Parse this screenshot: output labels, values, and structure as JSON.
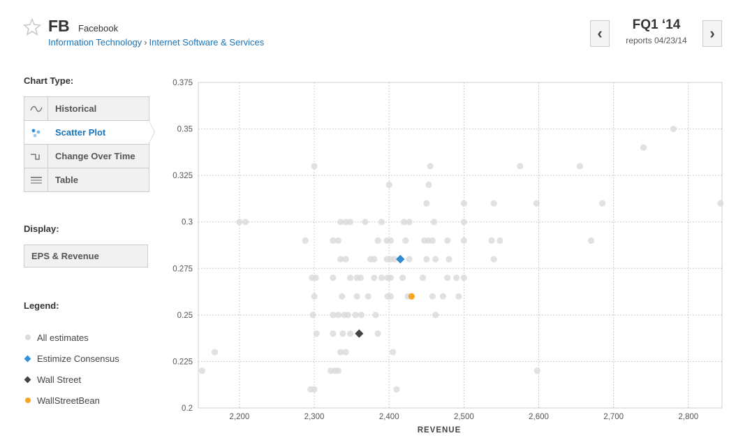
{
  "header": {
    "ticker": "FB",
    "company": "Facebook",
    "sector": "Information Technology",
    "separator": "›",
    "industry": "Internet Software & Services",
    "quarter": "FQ1 ‘14",
    "reports": "reports 04/23/14",
    "prev_label": "‹",
    "next_label": "›"
  },
  "sidebar": {
    "chart_type_title": "Chart Type:",
    "chart_types": [
      {
        "label": "Historical",
        "icon": "wave-icon"
      },
      {
        "label": "Scatter Plot",
        "icon": "scatter-icon",
        "active": true
      },
      {
        "label": "Change Over Time",
        "icon": "step-icon"
      },
      {
        "label": "Table",
        "icon": "table-icon"
      }
    ],
    "display_title": "Display:",
    "display_value": "EPS & Revenue",
    "legend_title": "Legend:",
    "legend": [
      {
        "label": "All estimates",
        "color": "#d9dadc",
        "shape": "dot"
      },
      {
        "label": "Estimize Consensus",
        "color": "#2f8fdc",
        "shape": "diamond"
      },
      {
        "label": "Wall Street",
        "color": "#444444",
        "shape": "diamond"
      },
      {
        "label": "WallStreetBean",
        "color": "#f5a623",
        "shape": "dot"
      }
    ]
  },
  "chart_data": {
    "type": "scatter",
    "xlabel": "REVENUE",
    "ylabel": "",
    "xlim": [
      2145,
      2845
    ],
    "ylim": [
      0.2,
      0.375
    ],
    "xticks": [
      2200,
      2300,
      2400,
      2500,
      2600,
      2700,
      2800
    ],
    "xtick_labels": [
      "2,200",
      "2,300",
      "2,400",
      "2,500",
      "2,600",
      "2,700",
      "2,800"
    ],
    "yticks": [
      0.2,
      0.225,
      0.25,
      0.275,
      0.3,
      0.325,
      0.35,
      0.375
    ],
    "ytick_labels": [
      "0.2",
      "0.225",
      "0.25",
      "0.275",
      "0.3",
      "0.325",
      "0.35",
      "0.375"
    ],
    "grid": true,
    "series": [
      {
        "name": "All estimates",
        "color": "#d9dadc",
        "marker": "dot",
        "points": [
          [
            2780,
            0.35
          ],
          [
            2740,
            0.34
          ],
          [
            2300,
            0.33
          ],
          [
            2455,
            0.33
          ],
          [
            2575,
            0.33
          ],
          [
            2655,
            0.33
          ],
          [
            2400,
            0.32
          ],
          [
            2453,
            0.32
          ],
          [
            2450,
            0.31
          ],
          [
            2500,
            0.31
          ],
          [
            2540,
            0.31
          ],
          [
            2597,
            0.31
          ],
          [
            2685,
            0.31
          ],
          [
            2843,
            0.31
          ],
          [
            2200,
            0.3
          ],
          [
            2208,
            0.3
          ],
          [
            2335,
            0.3
          ],
          [
            2342,
            0.3
          ],
          [
            2348,
            0.3
          ],
          [
            2368,
            0.3
          ],
          [
            2390,
            0.3
          ],
          [
            2420,
            0.3
          ],
          [
            2427,
            0.3
          ],
          [
            2460,
            0.3
          ],
          [
            2500,
            0.3
          ],
          [
            2288,
            0.29
          ],
          [
            2325,
            0.29
          ],
          [
            2332,
            0.29
          ],
          [
            2385,
            0.29
          ],
          [
            2397,
            0.29
          ],
          [
            2402,
            0.29
          ],
          [
            2422,
            0.29
          ],
          [
            2447,
            0.29
          ],
          [
            2452,
            0.29
          ],
          [
            2458,
            0.29
          ],
          [
            2478,
            0.29
          ],
          [
            2500,
            0.29
          ],
          [
            2537,
            0.29
          ],
          [
            2548,
            0.29
          ],
          [
            2670,
            0.29
          ],
          [
            2335,
            0.28
          ],
          [
            2342,
            0.28
          ],
          [
            2375,
            0.28
          ],
          [
            2380,
            0.28
          ],
          [
            2397,
            0.28
          ],
          [
            2402,
            0.28
          ],
          [
            2407,
            0.28
          ],
          [
            2427,
            0.28
          ],
          [
            2450,
            0.28
          ],
          [
            2462,
            0.28
          ],
          [
            2480,
            0.28
          ],
          [
            2540,
            0.28
          ],
          [
            2297,
            0.27
          ],
          [
            2302,
            0.27
          ],
          [
            2325,
            0.27
          ],
          [
            2348,
            0.27
          ],
          [
            2357,
            0.27
          ],
          [
            2362,
            0.27
          ],
          [
            2380,
            0.27
          ],
          [
            2390,
            0.27
          ],
          [
            2398,
            0.27
          ],
          [
            2402,
            0.27
          ],
          [
            2418,
            0.27
          ],
          [
            2445,
            0.27
          ],
          [
            2478,
            0.27
          ],
          [
            2490,
            0.27
          ],
          [
            2500,
            0.27
          ],
          [
            2300,
            0.26
          ],
          [
            2337,
            0.26
          ],
          [
            2357,
            0.26
          ],
          [
            2372,
            0.26
          ],
          [
            2398,
            0.26
          ],
          [
            2402,
            0.26
          ],
          [
            2425,
            0.26
          ],
          [
            2458,
            0.26
          ],
          [
            2472,
            0.26
          ],
          [
            2493,
            0.26
          ],
          [
            2298,
            0.25
          ],
          [
            2325,
            0.25
          ],
          [
            2332,
            0.25
          ],
          [
            2340,
            0.25
          ],
          [
            2345,
            0.25
          ],
          [
            2355,
            0.25
          ],
          [
            2363,
            0.25
          ],
          [
            2382,
            0.25
          ],
          [
            2462,
            0.25
          ],
          [
            2303,
            0.24
          ],
          [
            2325,
            0.24
          ],
          [
            2338,
            0.24
          ],
          [
            2348,
            0.24
          ],
          [
            2385,
            0.24
          ],
          [
            2167,
            0.23
          ],
          [
            2335,
            0.23
          ],
          [
            2342,
            0.23
          ],
          [
            2405,
            0.23
          ],
          [
            2150,
            0.22
          ],
          [
            2322,
            0.22
          ],
          [
            2328,
            0.22
          ],
          [
            2332,
            0.22
          ],
          [
            2598,
            0.22
          ],
          [
            2295,
            0.21
          ],
          [
            2300,
            0.21
          ],
          [
            2410,
            0.21
          ]
        ]
      },
      {
        "name": "Estimize Consensus",
        "color": "#2f8fdc",
        "marker": "diamond",
        "points": [
          [
            2415,
            0.28
          ]
        ]
      },
      {
        "name": "Wall Street",
        "color": "#444444",
        "marker": "diamond",
        "points": [
          [
            2360,
            0.24
          ]
        ]
      },
      {
        "name": "WallStreetBean",
        "color": "#f5a623",
        "marker": "dot",
        "points": [
          [
            2430,
            0.26
          ]
        ]
      }
    ]
  }
}
